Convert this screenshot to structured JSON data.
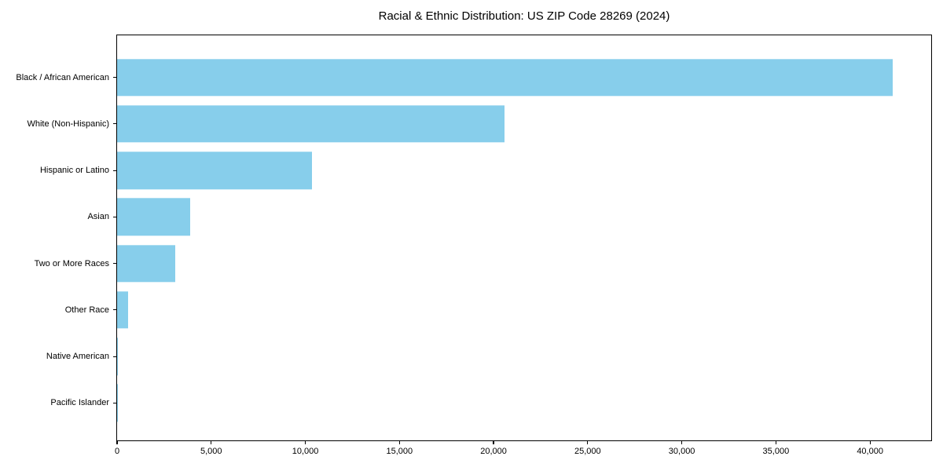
{
  "figure": {
    "background": "#ffffff",
    "border_color": "#000000",
    "text_color": "#000000"
  },
  "chart_data": {
    "type": "bar",
    "orientation": "horizontal",
    "title": "Racial & Ethnic Distribution: US ZIP Code 28269 (2024)",
    "xlabel": "",
    "ylabel": "",
    "categories": [
      "Black / African American",
      "White (Non-Hispanic)",
      "Hispanic or Latino",
      "Asian",
      "Two or More Races",
      "Other Race",
      "Native American",
      "Pacific Islander"
    ],
    "values": [
      41200,
      20600,
      10350,
      3880,
      3100,
      570,
      45,
      15
    ],
    "bar_color": "#87CEEB",
    "xlim": [
      0,
      43250
    ],
    "x_ticks": [
      {
        "value": 0,
        "label": "0"
      },
      {
        "value": 5000,
        "label": "5,000"
      },
      {
        "value": 10000,
        "label": "10,000"
      },
      {
        "value": 15000,
        "label": "15,000"
      },
      {
        "value": 20000,
        "label": "20,000"
      },
      {
        "value": 25000,
        "label": "25,000"
      },
      {
        "value": 30000,
        "label": "30,000"
      },
      {
        "value": 35000,
        "label": "35,000"
      },
      {
        "value": 40000,
        "label": "40,000"
      }
    ],
    "grid": false,
    "legend": null
  }
}
